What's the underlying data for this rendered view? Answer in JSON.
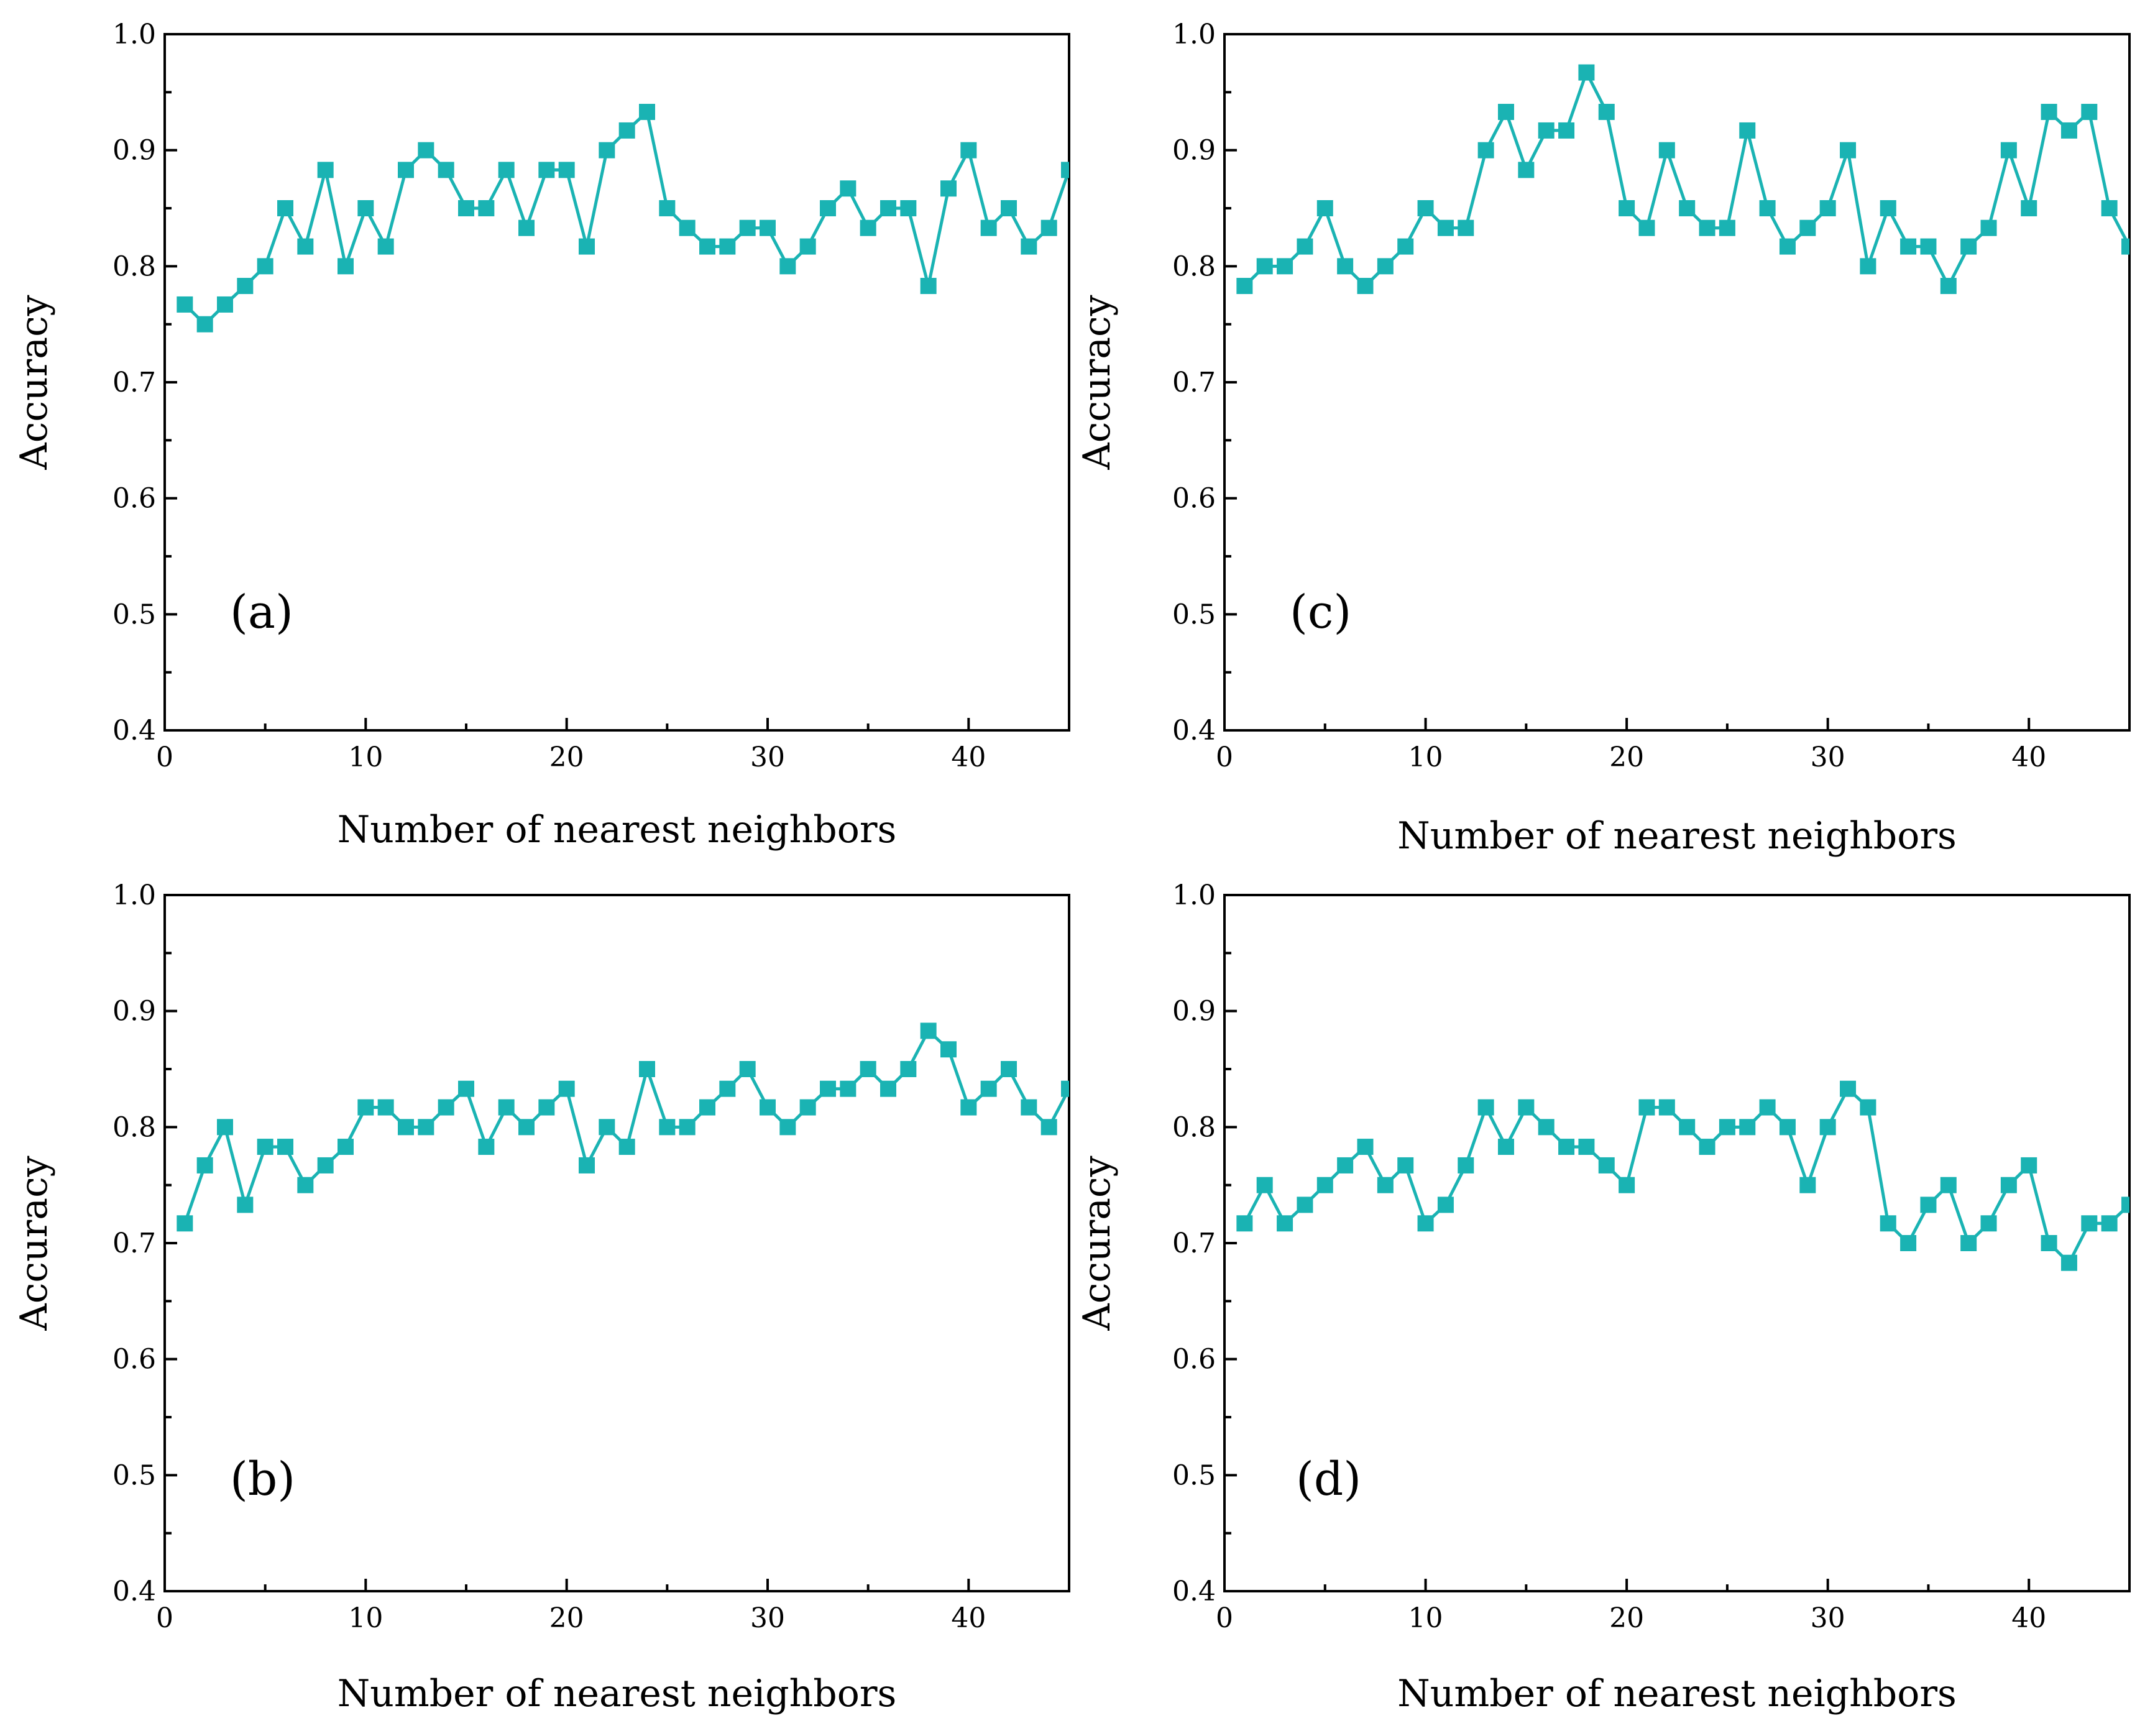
{
  "series_color": "#1ab3b3",
  "chart_data": [
    {
      "id": "a",
      "type": "line",
      "panel_label": "(a)",
      "xlabel": "Number of nearest neighbors",
      "ylabel": "Accuracy",
      "xlim": [
        0,
        45
      ],
      "ylim": [
        0.4,
        1.0
      ],
      "xticks": [
        0,
        10,
        20,
        30,
        40
      ],
      "xtick_labels": [
        "0",
        "10",
        "20",
        "30",
        "40"
      ],
      "yticks": [
        0.4,
        0.5,
        0.6,
        0.7,
        0.8,
        0.9,
        1.0
      ],
      "ytick_labels": [
        "0.4",
        "0.5",
        "0.6",
        "0.7",
        "0.8",
        "0.9",
        "1.0"
      ],
      "marker": "square",
      "x": [
        1,
        2,
        3,
        4,
        5,
        6,
        7,
        8,
        9,
        10,
        11,
        12,
        13,
        14,
        15,
        16,
        17,
        18,
        19,
        20,
        21,
        22,
        23,
        24,
        25,
        26,
        27,
        28,
        29,
        30,
        31,
        32,
        33,
        34,
        35,
        36,
        37,
        38,
        39,
        40,
        41,
        42,
        43,
        44,
        45
      ],
      "y": [
        0.767,
        0.75,
        0.767,
        0.783,
        0.8,
        0.85,
        0.817,
        0.883,
        0.8,
        0.85,
        0.817,
        0.883,
        0.9,
        0.883,
        0.85,
        0.85,
        0.883,
        0.833,
        0.883,
        0.883,
        0.817,
        0.9,
        0.917,
        0.933,
        0.85,
        0.833,
        0.817,
        0.817,
        0.833,
        0.833,
        0.8,
        0.817,
        0.85,
        0.867,
        0.833,
        0.85,
        0.85,
        0.783,
        0.867,
        0.9,
        0.833,
        0.85,
        0.817,
        0.833,
        0.883
      ]
    },
    {
      "id": "b",
      "type": "line",
      "panel_label": "(b)",
      "xlabel": "Number of nearest neighbors",
      "ylabel": "Accuracy",
      "xlim": [
        0,
        45
      ],
      "ylim": [
        0.4,
        1.0
      ],
      "xticks": [
        0,
        10,
        20,
        30,
        40
      ],
      "xtick_labels": [
        "0",
        "10",
        "20",
        "30",
        "40"
      ],
      "yticks": [
        0.4,
        0.5,
        0.6,
        0.7,
        0.8,
        0.9,
        1.0
      ],
      "ytick_labels": [
        "0.4",
        "0.5",
        "0.6",
        "0.7",
        "0.8",
        "0.9",
        "1.0"
      ],
      "marker": "square",
      "x": [
        1,
        2,
        3,
        4,
        5,
        6,
        7,
        8,
        9,
        10,
        11,
        12,
        13,
        14,
        15,
        16,
        17,
        18,
        19,
        20,
        21,
        22,
        23,
        24,
        25,
        26,
        27,
        28,
        29,
        30,
        31,
        32,
        33,
        34,
        35,
        36,
        37,
        38,
        39,
        40,
        41,
        42,
        43,
        44,
        45
      ],
      "y": [
        0.717,
        0.767,
        0.8,
        0.733,
        0.783,
        0.783,
        0.75,
        0.767,
        0.783,
        0.817,
        0.817,
        0.8,
        0.8,
        0.817,
        0.833,
        0.783,
        0.817,
        0.8,
        0.817,
        0.833,
        0.767,
        0.8,
        0.783,
        0.85,
        0.8,
        0.8,
        0.817,
        0.833,
        0.85,
        0.817,
        0.8,
        0.817,
        0.833,
        0.833,
        0.85,
        0.833,
        0.85,
        0.883,
        0.867,
        0.817,
        0.833,
        0.85,
        0.817,
        0.8,
        0.833
      ]
    },
    {
      "id": "c",
      "type": "line",
      "panel_label": "(c)",
      "xlabel": "Number of nearest neighbors",
      "ylabel": "Accuracy",
      "xlim": [
        0,
        45
      ],
      "ylim": [
        0.4,
        1.0
      ],
      "xticks": [
        0,
        10,
        20,
        30,
        40
      ],
      "xtick_labels": [
        "0",
        "10",
        "20",
        "30",
        "40"
      ],
      "yticks": [
        0.4,
        0.5,
        0.6,
        0.7,
        0.8,
        0.9,
        1.0
      ],
      "ytick_labels": [
        "0.4",
        "0.5",
        "0.6",
        "0.7",
        "0.8",
        "0.9",
        "1.0"
      ],
      "marker": "square",
      "x": [
        1,
        2,
        3,
        4,
        5,
        6,
        7,
        8,
        9,
        10,
        11,
        12,
        13,
        14,
        15,
        16,
        17,
        18,
        19,
        20,
        21,
        22,
        23,
        24,
        25,
        26,
        27,
        28,
        29,
        30,
        31,
        32,
        33,
        34,
        35,
        36,
        37,
        38,
        39,
        40,
        41,
        42,
        43,
        44,
        45
      ],
      "y": [
        0.783,
        0.8,
        0.8,
        0.817,
        0.85,
        0.8,
        0.783,
        0.8,
        0.817,
        0.85,
        0.833,
        0.833,
        0.9,
        0.933,
        0.883,
        0.917,
        0.917,
        0.967,
        0.933,
        0.85,
        0.833,
        0.9,
        0.85,
        0.833,
        0.833,
        0.917,
        0.85,
        0.817,
        0.833,
        0.85,
        0.9,
        0.8,
        0.85,
        0.817,
        0.817,
        0.783,
        0.817,
        0.833,
        0.9,
        0.85,
        0.933,
        0.917,
        0.933,
        0.85,
        0.817
      ]
    },
    {
      "id": "d",
      "type": "line",
      "panel_label": "(d)",
      "xlabel": "Number of nearest neighbors",
      "ylabel": "Accuracy",
      "xlim": [
        0,
        45
      ],
      "ylim": [
        0.4,
        1.0
      ],
      "xticks": [
        0,
        10,
        20,
        30,
        40
      ],
      "xtick_labels": [
        "0",
        "10",
        "20",
        "30",
        "40"
      ],
      "yticks": [
        0.4,
        0.5,
        0.6,
        0.7,
        0.8,
        0.9,
        1.0
      ],
      "ytick_labels": [
        "0.4",
        "0.5",
        "0.6",
        "0.7",
        "0.8",
        "0.9",
        "1.0"
      ],
      "marker": "square",
      "x": [
        1,
        2,
        3,
        4,
        5,
        6,
        7,
        8,
        9,
        10,
        11,
        12,
        13,
        14,
        15,
        16,
        17,
        18,
        19,
        20,
        21,
        22,
        23,
        24,
        25,
        26,
        27,
        28,
        29,
        30,
        31,
        32,
        33,
        34,
        35,
        36,
        37,
        38,
        39,
        40,
        41,
        42,
        43,
        44,
        45
      ],
      "y": [
        0.717,
        0.75,
        0.717,
        0.733,
        0.75,
        0.767,
        0.783,
        0.75,
        0.767,
        0.717,
        0.733,
        0.767,
        0.817,
        0.783,
        0.817,
        0.8,
        0.783,
        0.783,
        0.767,
        0.75,
        0.817,
        0.817,
        0.8,
        0.783,
        0.8,
        0.8,
        0.817,
        0.8,
        0.75,
        0.8,
        0.833,
        0.817,
        0.717,
        0.7,
        0.733,
        0.75,
        0.7,
        0.717,
        0.75,
        0.767,
        0.7,
        0.683,
        0.717,
        0.717,
        0.733
      ]
    }
  ]
}
